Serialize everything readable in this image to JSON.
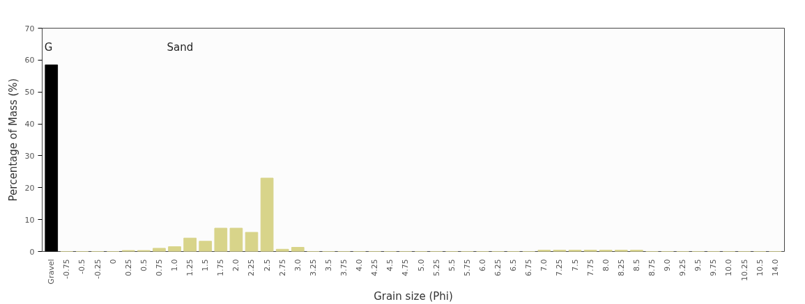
{
  "chart_data": {
    "type": "bar",
    "xlabel": "Grain size (Phi)",
    "ylabel": "Percentage of Mass (%)",
    "categories": [
      "Gravel",
      "-0.75",
      "-0.5",
      "-0.25",
      "0",
      "0.25",
      "0.5",
      "0.75",
      "1.0",
      "1.25",
      "1.5",
      "1.75",
      "2.0",
      "2.25",
      "2.5",
      "2.75",
      "3.0",
      "3.25",
      "3.5",
      "3.75",
      "4.0",
      "4.25",
      "4.5",
      "4.75",
      "5.0",
      "5.25",
      "5.5",
      "5.75",
      "6.0",
      "6.25",
      "6.5",
      "6.75",
      "7.0",
      "7.25",
      "7.5",
      "7.75",
      "8.0",
      "8.25",
      "8.5",
      "8.75",
      "9.0",
      "9.25",
      "9.5",
      "9.75",
      "10.0",
      "10.25",
      "10.5",
      "14.0"
    ],
    "values": [
      58.5,
      0,
      0,
      0,
      0,
      0.3,
      0.3,
      1,
      1.5,
      4.2,
      3.2,
      7.3,
      7.3,
      6,
      23,
      0.7,
      1.3,
      0,
      0,
      0,
      0,
      0,
      0,
      0,
      0,
      0,
      0,
      0,
      0,
      0,
      0,
      0,
      0.4,
      0.4,
      0.4,
      0.4,
      0.4,
      0.4,
      0.4,
      0,
      0,
      0,
      0,
      0,
      0,
      0,
      0,
      0
    ],
    "colors": [
      "#000000",
      "#d8d48a",
      "#d8d48a",
      "#d8d48a",
      "#d8d48a",
      "#d8d48a",
      "#d8d48a",
      "#d8d48a",
      "#d8d48a",
      "#d8d48a",
      "#d8d48a",
      "#d8d48a",
      "#d8d48a",
      "#d8d48a",
      "#d8d48a",
      "#d8d48a",
      "#d8d48a",
      "#d8d48a",
      "#d8d48a",
      "#d8d48a",
      "#d8d48a",
      "#d8d48a",
      "#d8d48a",
      "#d8d48a",
      "#d8d48a",
      "#d8d48a",
      "#d8d48a",
      "#d8d48a",
      "#d8d48a",
      "#d8d48a",
      "#d8d48a",
      "#d8d48a",
      "#d8d48a",
      "#d8d48a",
      "#d8d48a",
      "#d8d48a",
      "#d8d48a",
      "#d8d48a",
      "#d8d48a",
      "#d8d48a",
      "#d8d48a",
      "#d8d48a",
      "#d8d48a",
      "#d8d48a",
      "#d8d48a",
      "#d8d48a",
      "#d8d48a",
      "#d8d48a"
    ],
    "annotations": [
      "G",
      "Sand"
    ],
    "ylim": [
      0,
      70
    ],
    "yticks": [
      0,
      10,
      20,
      30,
      40,
      50,
      60,
      70
    ],
    "grid": false
  }
}
